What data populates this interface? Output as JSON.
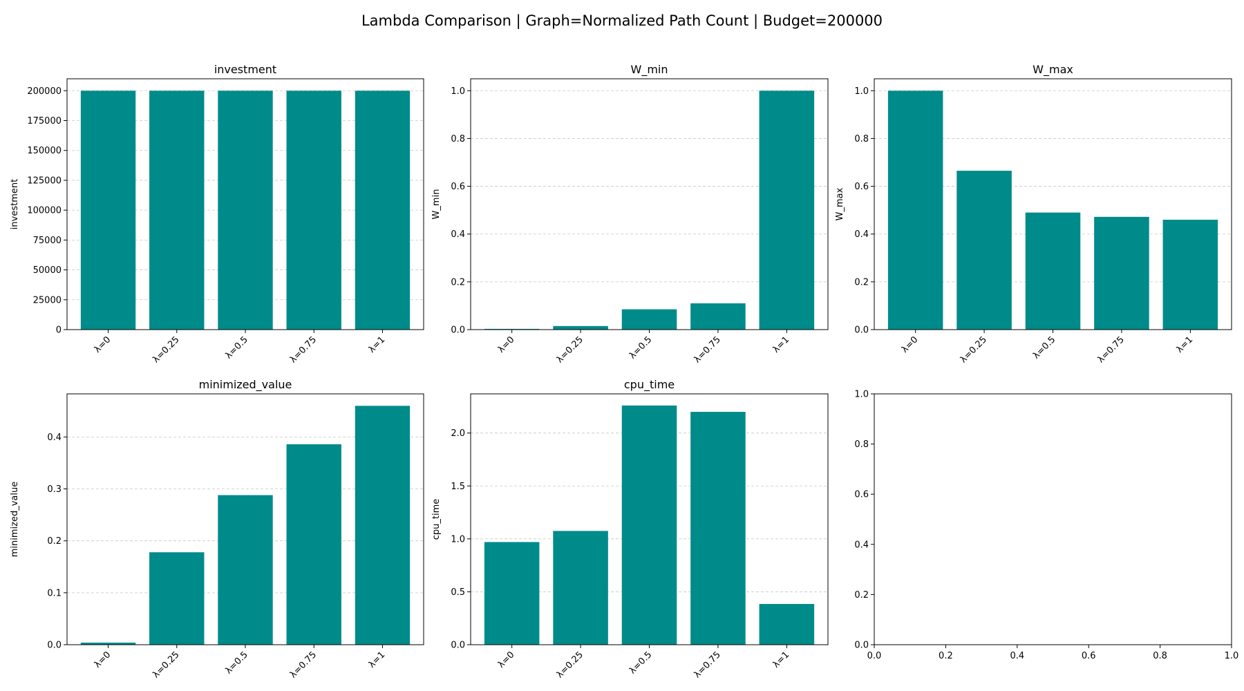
{
  "figure_title": "Lambda Comparison | Graph=Normalized Path Count | Budget=200000",
  "colors": {
    "bar": "#008b8b"
  },
  "chart_data": [
    {
      "type": "bar",
      "title": "investment",
      "ylabel": "investment",
      "categories": [
        "λ=0",
        "λ=0.25",
        "λ=0.5",
        "λ=0.75",
        "λ=1"
      ],
      "values": [
        200000,
        200000,
        200000,
        200000,
        200000
      ],
      "ylim": [
        0,
        210000
      ],
      "yticks": [
        0,
        25000,
        50000,
        75000,
        100000,
        125000,
        150000,
        175000,
        200000
      ],
      "grid": "y"
    },
    {
      "type": "bar",
      "title": "W_min",
      "ylabel": "W_min",
      "categories": [
        "λ=0",
        "λ=0.25",
        "λ=0.5",
        "λ=0.75",
        "λ=1"
      ],
      "values": [
        0.003,
        0.015,
        0.085,
        0.11,
        1.0
      ],
      "ylim": [
        0,
        1.05
      ],
      "yticks": [
        0.0,
        0.2,
        0.4,
        0.6,
        0.8,
        1.0
      ],
      "grid": "y"
    },
    {
      "type": "bar",
      "title": "W_max",
      "ylabel": "W_max",
      "categories": [
        "λ=0",
        "λ=0.25",
        "λ=0.5",
        "λ=0.75",
        "λ=1"
      ],
      "values": [
        1.0,
        0.665,
        0.49,
        0.472,
        0.46
      ],
      "ylim": [
        0,
        1.05
      ],
      "yticks": [
        0.0,
        0.2,
        0.4,
        0.6,
        0.8,
        1.0
      ],
      "grid": "y"
    },
    {
      "type": "bar",
      "title": "minimized_value",
      "ylabel": "minimized_value",
      "categories": [
        "λ=0",
        "λ=0.25",
        "λ=0.5",
        "λ=0.75",
        "λ=1"
      ],
      "values": [
        0.004,
        0.178,
        0.288,
        0.386,
        0.46
      ],
      "ylim": [
        0,
        0.483
      ],
      "yticks": [
        0.0,
        0.1,
        0.2,
        0.3,
        0.4
      ],
      "grid": "y"
    },
    {
      "type": "bar",
      "title": "cpu_time",
      "ylabel": "cpu_time",
      "categories": [
        "λ=0",
        "λ=0.25",
        "λ=0.5",
        "λ=0.75",
        "λ=1"
      ],
      "values": [
        0.97,
        1.075,
        2.26,
        2.2,
        0.385
      ],
      "ylim": [
        0,
        2.37
      ],
      "yticks": [
        0.0,
        0.5,
        1.0,
        1.5,
        2.0
      ],
      "grid": "y"
    },
    {
      "type": "empty",
      "title": "",
      "ylabel": "",
      "categories": [],
      "values": [],
      "xlim": [
        0,
        1
      ],
      "ylim": [
        0,
        1
      ],
      "xticks": [
        0.0,
        0.2,
        0.4,
        0.6,
        0.8,
        1.0
      ],
      "yticks": [
        0.0,
        0.2,
        0.4,
        0.6,
        0.8,
        1.0
      ],
      "grid": "none"
    }
  ]
}
